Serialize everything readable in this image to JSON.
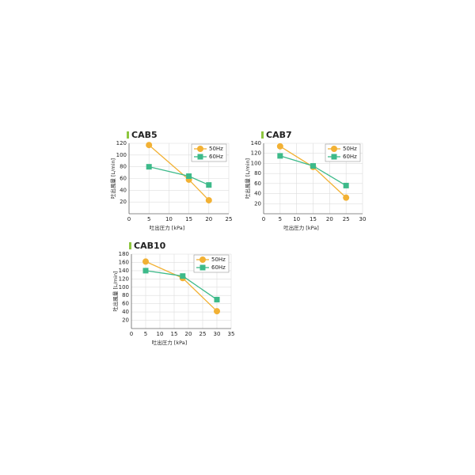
{
  "chart_data": [
    {
      "type": "line",
      "title": "CAB5",
      "xlabel": "吐出圧力 [kPa]",
      "ylabel": "吐出風量 [L/min]",
      "x": [
        5,
        15,
        20
      ],
      "xlim": [
        0,
        25
      ],
      "xticks": [
        0,
        5,
        10,
        15,
        20,
        25
      ],
      "ylim": [
        0,
        120
      ],
      "yticks": [
        20,
        40,
        60,
        80,
        100,
        120
      ],
      "grid": true,
      "legend": "top-right",
      "series": [
        {
          "name": "50Hz",
          "color": "#f2b134",
          "marker": "circle",
          "values": [
            117,
            58,
            23
          ]
        },
        {
          "name": "60Hz",
          "color": "#3dba8a",
          "marker": "square",
          "values": [
            80,
            64,
            49
          ]
        }
      ]
    },
    {
      "type": "line",
      "title": "CAB7",
      "xlabel": "吐出圧力 [kPa]",
      "ylabel": "吐出風量 [L/min]",
      "x": [
        5,
        15,
        25
      ],
      "xlim": [
        0,
        30
      ],
      "xticks": [
        0,
        5,
        10,
        15,
        20,
        25,
        30
      ],
      "ylim": [
        0,
        140
      ],
      "yticks": [
        20,
        40,
        60,
        80,
        100,
        120,
        140
      ],
      "grid": true,
      "legend": "top-right",
      "series": [
        {
          "name": "50Hz",
          "color": "#f2b134",
          "marker": "circle",
          "values": [
            134,
            93,
            32
          ]
        },
        {
          "name": "60Hz",
          "color": "#3dba8a",
          "marker": "square",
          "values": [
            115,
            95,
            56
          ]
        }
      ]
    },
    {
      "type": "line",
      "title": "CAB10",
      "xlabel": "吐出圧力 [kPa]",
      "ylabel": "吐出風量 [L/min]",
      "x": [
        5,
        18,
        30
      ],
      "xlim": [
        0,
        35
      ],
      "xticks": [
        0,
        5,
        10,
        15,
        20,
        25,
        30,
        35
      ],
      "ylim": [
        0,
        180
      ],
      "yticks": [
        20,
        40,
        60,
        80,
        100,
        120,
        140,
        160,
        180
      ],
      "grid": true,
      "legend": "top-right",
      "series": [
        {
          "name": "50Hz",
          "color": "#f2b134",
          "marker": "circle",
          "values": [
            162,
            122,
            42
          ]
        },
        {
          "name": "60Hz",
          "color": "#3dba8a",
          "marker": "square",
          "values": [
            140,
            127,
            70
          ]
        }
      ]
    }
  ]
}
